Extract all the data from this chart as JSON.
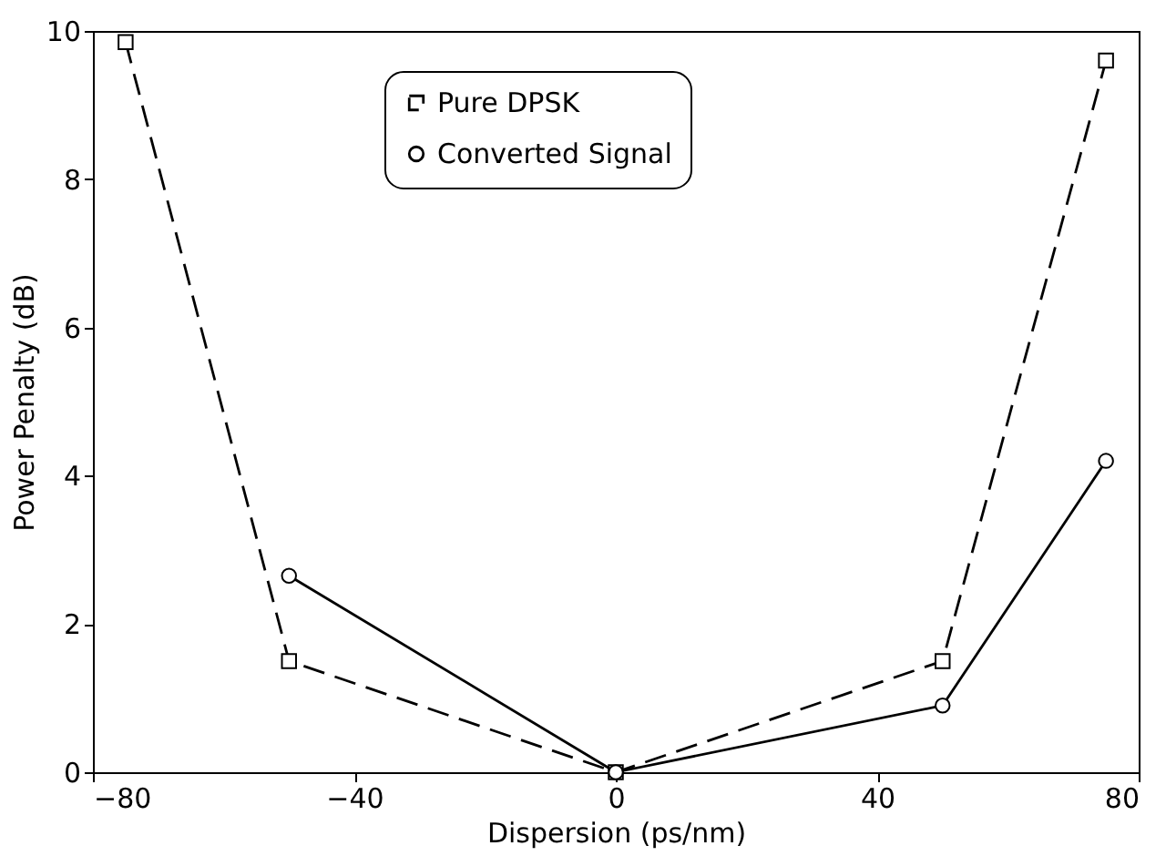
{
  "chart_data": {
    "type": "line",
    "xlabel": "Dispersion (ps/nm)",
    "ylabel": "Power Penalty (dB)",
    "xlim": [
      -80,
      80
    ],
    "xticks": [
      -80,
      -40,
      0,
      40,
      80
    ],
    "ylim": [
      0,
      10
    ],
    "yticks": [
      0,
      2,
      4,
      6,
      8,
      10
    ],
    "legend": "top",
    "series": [
      {
        "name": "Pure DPSK",
        "color": "#000000",
        "marker": "square",
        "line_style": "dashed",
        "x": [
          -75,
          -50,
          0,
          50,
          75
        ],
        "values": [
          9.85,
          1.5,
          0,
          1.5,
          9.6
        ]
      },
      {
        "name": "Converted Signal",
        "color": "#000000",
        "marker": "circle",
        "line_style": "solid",
        "x": [
          -50,
          0,
          50,
          75
        ],
        "values": [
          2.65,
          0,
          0.9,
          4.2
        ]
      }
    ]
  }
}
